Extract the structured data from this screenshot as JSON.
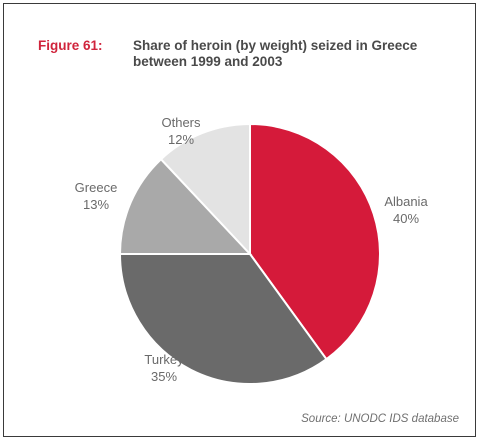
{
  "figure": {
    "number": "Figure 61:",
    "title": "Share of heroin (by weight) seized in Greece between 1999 and 2003"
  },
  "source": "Source: UNODC IDS database",
  "colors": {
    "accent": "#d0243c",
    "Albania": "#d51a3a",
    "Turkey": "#6a6a6a",
    "Greece": "#a9a9a9",
    "Others": "#e3e3e3"
  },
  "chart_data": {
    "type": "pie",
    "title": "Share of heroin (by weight) seized in Greece between 1999 and 2003",
    "categories": [
      "Albania",
      "Turkey",
      "Greece",
      "Others"
    ],
    "values": [
      40,
      35,
      13,
      12
    ],
    "value_labels": [
      "40%",
      "35%",
      "13%",
      "12%"
    ],
    "start": "12 o'clock",
    "direction": "clockwise",
    "legend": "none"
  }
}
